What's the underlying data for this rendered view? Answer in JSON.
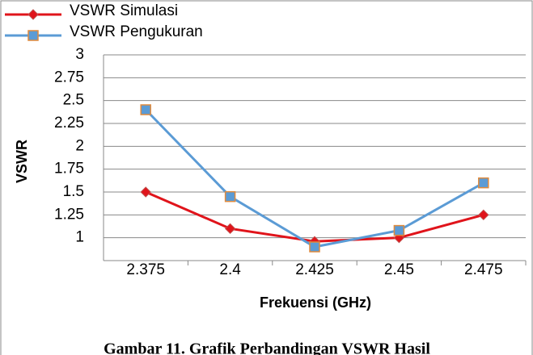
{
  "chart_data": {
    "type": "line",
    "y_label": "VSWR",
    "x_label": "Frekuensi (GHz)",
    "caption": "Gambar 11. Grafik Perbandingan VSWR Hasil",
    "categories": [
      "2.375",
      "2.4",
      "2.425",
      "2.45",
      "2.475"
    ],
    "series": [
      {
        "name": "VSWR Simulasi",
        "color": "#e0141b",
        "marker": "diamond",
        "values": [
          1.5,
          1.1,
          0.96,
          1.0,
          1.25
        ]
      },
      {
        "name": "VSWR Pengukuran",
        "color": "#5b9bd5",
        "marker": "square",
        "values": [
          2.4,
          1.45,
          0.9,
          1.08,
          1.6
        ]
      }
    ],
    "ylim": [
      0.75,
      3
    ],
    "yticks": [
      1,
      1.25,
      1.5,
      1.75,
      2,
      2.25,
      2.5,
      2.75,
      3
    ],
    "grid": true
  }
}
